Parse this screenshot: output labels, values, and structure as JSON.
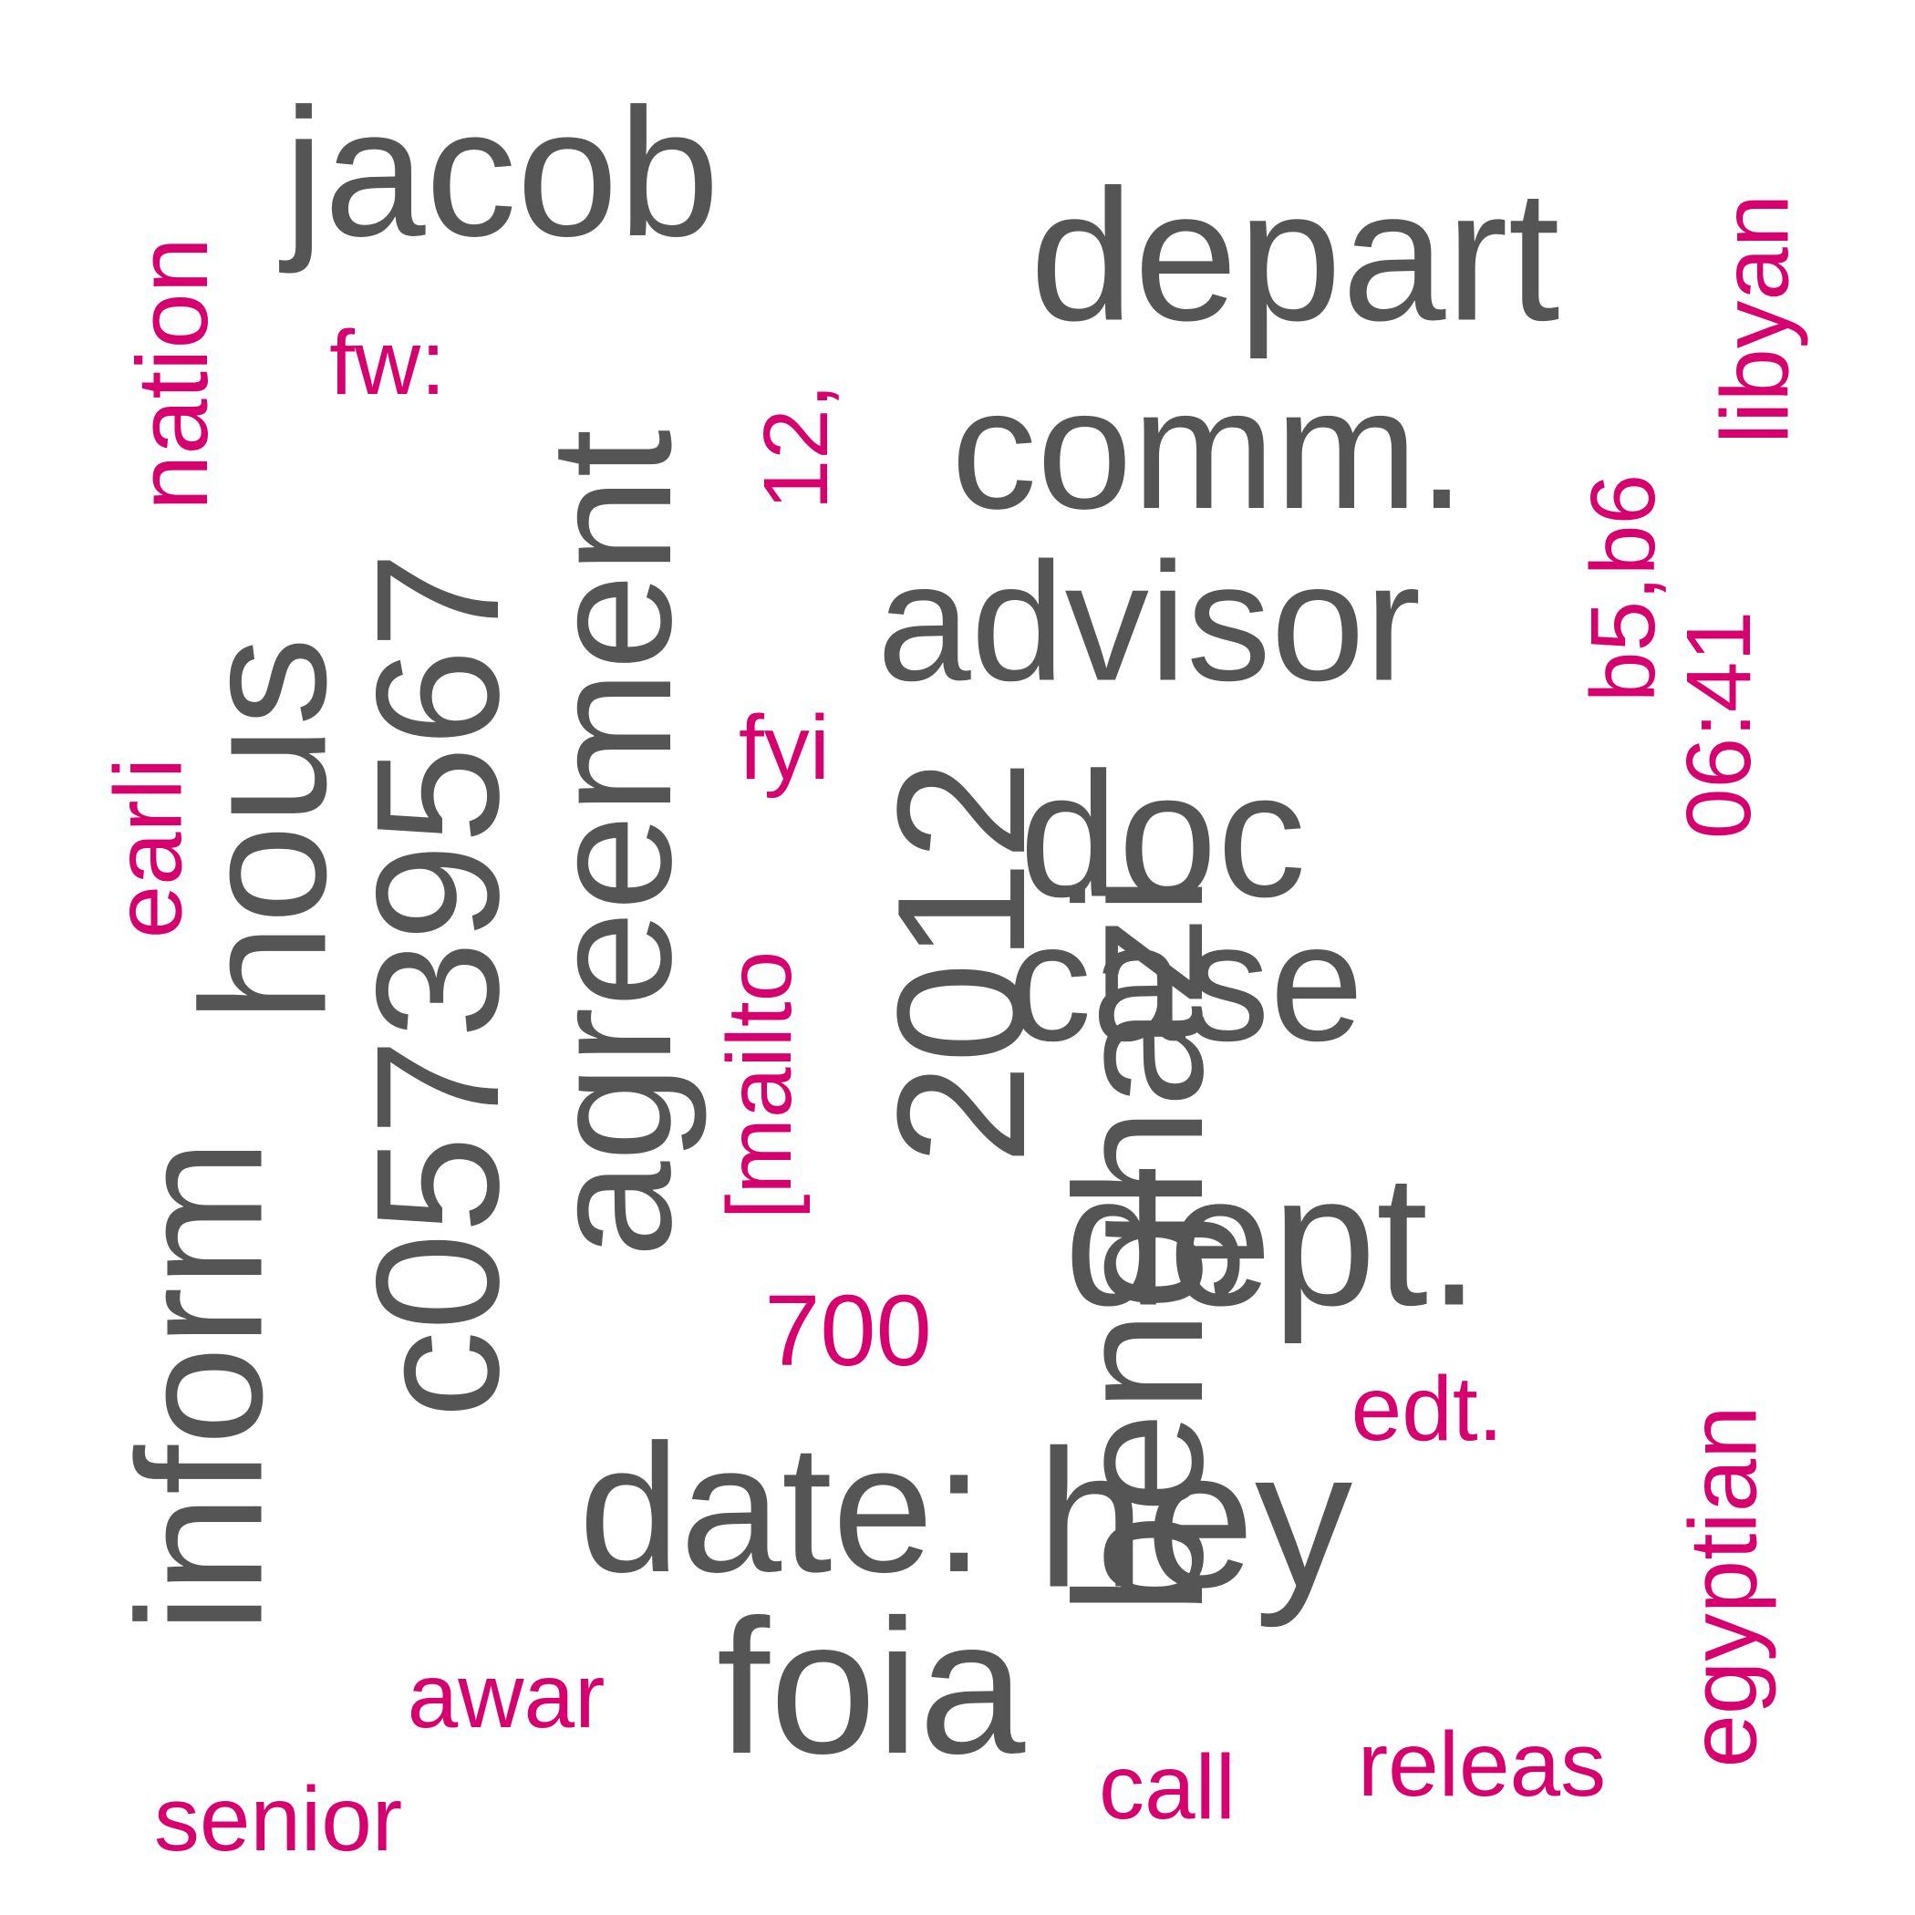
{
  "colors": {
    "background": "#ffffff",
    "primary_words": "#555555",
    "secondary_words": "#d6006f"
  },
  "words": {
    "jacob": "jacob",
    "depart": "depart",
    "comm": "comm.",
    "advisor": "advisor",
    "doc": "doc",
    "case": "case",
    "dept": "dept.",
    "hey": "hey",
    "date": "date:",
    "foia": "foia",
    "inform": "inform",
    "hous": "hous",
    "number": "c05739567",
    "agreement": "agreement",
    "year": "2012",
    "benghazi": "benghazi",
    "nation": "nation",
    "fw": "fw:",
    "twelve": "12,",
    "fyi": "fyi",
    "earli": "earli",
    "mailto": "[mailto",
    "seven_hundred": "700",
    "edt": "edt.",
    "libyan": "libyan",
    "b5b6": "b5,b6",
    "time": "06:41",
    "egyptian": "egyptian",
    "awar": "awar",
    "senior": "senior",
    "call": "call",
    "releas": "releas"
  }
}
